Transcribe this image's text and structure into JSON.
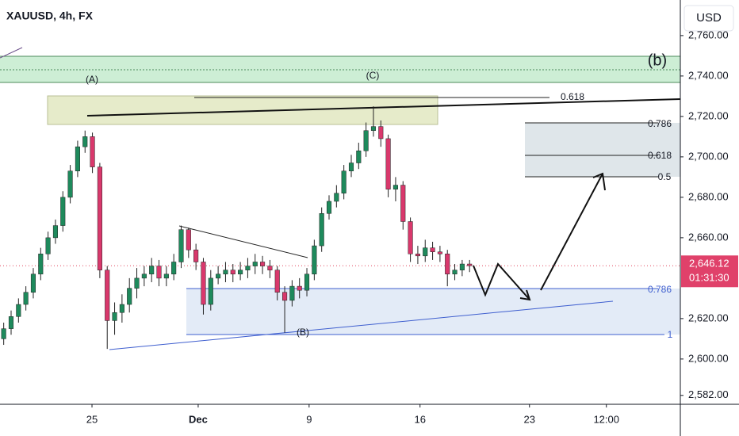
{
  "chart_data": {
    "type": "candlestick",
    "title": "XAUUSD, 4h, FX",
    "currency": "USD",
    "x": [
      0,
      1,
      2,
      3,
      4,
      5,
      6,
      7,
      8,
      9,
      10,
      11,
      12,
      13,
      14,
      15,
      16,
      17,
      18,
      19,
      20,
      21,
      22,
      23,
      24,
      25,
      26,
      27,
      28,
      29,
      30,
      31,
      32,
      33,
      34,
      35,
      36,
      37,
      38,
      39,
      40,
      41,
      42,
      43,
      44,
      45,
      46,
      47,
      48,
      49,
      50,
      51,
      52,
      53,
      54,
      55,
      56,
      57,
      58,
      59,
      60,
      61,
      62,
      63
    ],
    "open": [
      2610,
      2615,
      2621,
      2627,
      2633,
      2642,
      2652,
      2660,
      2666,
      2680,
      2693,
      2705,
      2710,
      2695,
      2644,
      2619,
      2623,
      2627,
      2635,
      2640,
      2642,
      2646,
      2640,
      2642,
      2648,
      2664,
      2654,
      2648,
      2627,
      2640,
      2642,
      2644,
      2642,
      2644,
      2646,
      2648,
      2646,
      2644,
      2633,
      2629,
      2636,
      2634,
      2642,
      2656,
      2672,
      2678,
      2682,
      2693,
      2697,
      2703,
      2713,
      2715,
      2709,
      2684,
      2686,
      2668,
      2652,
      2651,
      2655,
      2653,
      2652,
      2642,
      2644,
      2647
    ],
    "high": [
      2618,
      2624,
      2630,
      2636,
      2645,
      2655,
      2663,
      2669,
      2683,
      2696,
      2708,
      2713,
      2712,
      2697,
      2646,
      2628,
      2632,
      2640,
      2645,
      2646,
      2650,
      2649,
      2646,
      2652,
      2666,
      2665,
      2657,
      2650,
      2644,
      2646,
      2648,
      2647,
      2648,
      2650,
      2652,
      2651,
      2649,
      2646,
      2636,
      2639,
      2640,
      2645,
      2659,
      2675,
      2681,
      2686,
      2696,
      2701,
      2707,
      2717,
      2725,
      2718,
      2711,
      2690,
      2688,
      2670,
      2656,
      2659,
      2658,
      2656,
      2654,
      2647,
      2649,
      2649
    ],
    "low": [
      2607,
      2612,
      2618,
      2624,
      2630,
      2639,
      2649,
      2657,
      2663,
      2677,
      2690,
      2702,
      2692,
      2640,
      2605,
      2612,
      2618,
      2623,
      2630,
      2636,
      2638,
      2636,
      2636,
      2639,
      2645,
      2650,
      2644,
      2622,
      2624,
      2637,
      2638,
      2638,
      2639,
      2640,
      2642,
      2642,
      2640,
      2629,
      2613,
      2626,
      2630,
      2631,
      2639,
      2653,
      2669,
      2675,
      2679,
      2690,
      2694,
      2700,
      2710,
      2705,
      2680,
      2678,
      2664,
      2648,
      2647,
      2648,
      2649,
      2648,
      2636,
      2639,
      2641,
      2643
    ],
    "close": [
      2615,
      2621,
      2627,
      2633,
      2642,
      2652,
      2660,
      2666,
      2680,
      2693,
      2705,
      2710,
      2695,
      2644,
      2619,
      2623,
      2627,
      2635,
      2640,
      2642,
      2646,
      2640,
      2642,
      2648,
      2664,
      2654,
      2648,
      2627,
      2640,
      2642,
      2644,
      2642,
      2644,
      2646,
      2648,
      2646,
      2644,
      2633,
      2629,
      2636,
      2634,
      2642,
      2656,
      2672,
      2678,
      2682,
      2693,
      2697,
      2703,
      2713,
      2715,
      2709,
      2684,
      2686,
      2668,
      2652,
      2651,
      2655,
      2653,
      2652,
      2642,
      2644,
      2647,
      2646.12
    ],
    "up_color": "#1e8a5c",
    "down_color": "#d9386c",
    "xlim": [
      -0.5,
      91.5
    ],
    "xticks": [
      {
        "value": 11.94,
        "label": "25"
      },
      {
        "value": 26.3,
        "label": "Dec"
      },
      {
        "value": 41.3,
        "label": "9"
      },
      {
        "value": 56.3,
        "label": "16"
      },
      {
        "value": 71.1,
        "label": "23"
      },
      {
        "value": 81.5,
        "label": "12:00"
      }
    ],
    "ylim": [
      2577.6,
      2777.6
    ],
    "yticks": [
      {
        "value": 2760,
        "label": "2,760.00"
      },
      {
        "value": 2740,
        "label": "2,740.00"
      },
      {
        "value": 2720,
        "label": "2,720.00"
      },
      {
        "value": 2700,
        "label": "2,700.00"
      },
      {
        "value": 2680,
        "label": "2,680.00"
      },
      {
        "value": 2660,
        "label": "2,660.00"
      },
      {
        "value": 2620,
        "label": "2,620.00"
      },
      {
        "value": 2600,
        "label": "2,600.00"
      },
      {
        "value": 2582,
        "label": "2,582.00"
      }
    ],
    "last_price": {
      "value": 2646.12,
      "label": "2,646.12"
    },
    "countdown": "01:31:30",
    "waves": [
      "(A)",
      "(B)",
      "(C)",
      "(b)"
    ],
    "fib_labels": [
      "0.618",
      "0.786",
      "0.618",
      "0.5",
      "0.786",
      "1"
    ]
  }
}
